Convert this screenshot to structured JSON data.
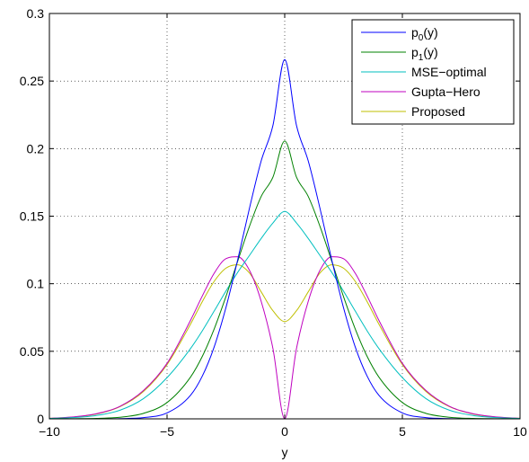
{
  "chart_data": {
    "type": "line",
    "title": "",
    "xlabel": "y",
    "ylabel": "",
    "xlim": [
      -10,
      10
    ],
    "ylim": [
      0,
      0.3
    ],
    "xticks": [
      -10,
      -5,
      0,
      5,
      10
    ],
    "xtick_labels": [
      "−10",
      "−5",
      "0",
      "5",
      "10"
    ],
    "yticks": [
      0,
      0.05,
      0.1,
      0.15,
      0.2,
      0.25,
      0.3
    ],
    "ytick_labels": [
      "0",
      "0.05",
      "0.1",
      "0.15",
      "0.2",
      "0.25",
      "0.3"
    ],
    "grid": true,
    "legend_position": "top-right",
    "x": [
      -10,
      -9,
      -8,
      -7,
      -6,
      -5,
      -4,
      -3.5,
      -3,
      -2.5,
      -2,
      -1.5,
      -1,
      -0.5,
      0,
      0.5,
      1,
      1.5,
      2,
      2.5,
      3,
      3.5,
      4,
      5,
      6,
      7,
      8,
      9,
      10
    ],
    "series": [
      {
        "name_main": "p",
        "name_sub": "0",
        "name_tail": "(y)",
        "color": "#0000ff",
        "values": [
          0,
          0,
          0,
          0.0002,
          0.0009,
          0.0044,
          0.0175,
          0.0317,
          0.0531,
          0.0822,
          0.1176,
          0.1557,
          0.1909,
          0.2172,
          0.2659,
          0.2172,
          0.1909,
          0.1557,
          0.1176,
          0.0822,
          0.0531,
          0.0317,
          0.0175,
          0.0044,
          0.0009,
          0.0002,
          0,
          0,
          0
        ]
      },
      {
        "name_main": "p",
        "name_sub": "1",
        "name_tail": "(y)",
        "color": "#008000",
        "values": [
          0,
          0.0001,
          0.0003,
          0.0012,
          0.0041,
          0.0121,
          0.031,
          0.0463,
          0.0664,
          0.0904,
          0.1166,
          0.1424,
          0.1646,
          0.1789,
          0.2056,
          0.1789,
          0.1646,
          0.1424,
          0.1166,
          0.0904,
          0.0664,
          0.0463,
          0.031,
          0.0121,
          0.0041,
          0.0012,
          0.0003,
          0.0001,
          0
        ]
      },
      {
        "name_main": "MSE−optimal",
        "name_sub": "",
        "name_tail": "",
        "color": "#00bfbf",
        "values": [
          0.0003,
          0.0009,
          0.0025,
          0.0064,
          0.015,
          0.0305,
          0.0521,
          0.0652,
          0.0797,
          0.0945,
          0.1084,
          0.1209,
          0.1335,
          0.145,
          0.1535,
          0.145,
          0.1335,
          0.1209,
          0.1084,
          0.0945,
          0.0797,
          0.0652,
          0.0521,
          0.0305,
          0.015,
          0.0064,
          0.0025,
          0.0009,
          0.0003
        ]
      },
      {
        "name_main": "Gupta−Hero",
        "name_sub": "",
        "name_tail": "",
        "color": "#bf00bf",
        "values": [
          0.0004,
          0.0014,
          0.0038,
          0.0093,
          0.021,
          0.0411,
          0.073,
          0.091,
          0.1077,
          0.1185,
          0.12,
          0.11,
          0.087,
          0.052,
          0,
          0.052,
          0.087,
          0.11,
          0.12,
          0.1185,
          0.1077,
          0.091,
          0.073,
          0.0411,
          0.021,
          0.0093,
          0.0038,
          0.0014,
          0.0004
        ]
      },
      {
        "name_main": "Proposed",
        "name_sub": "",
        "name_tail": "",
        "color": "#bfbf00",
        "values": [
          0.0004,
          0.0013,
          0.0036,
          0.009,
          0.0203,
          0.0402,
          0.0702,
          0.0868,
          0.1017,
          0.1115,
          0.114,
          0.108,
          0.094,
          0.08,
          0.072,
          0.08,
          0.094,
          0.108,
          0.114,
          0.1115,
          0.1017,
          0.0868,
          0.0702,
          0.0402,
          0.0203,
          0.009,
          0.0036,
          0.0013,
          0.0004
        ]
      }
    ]
  }
}
